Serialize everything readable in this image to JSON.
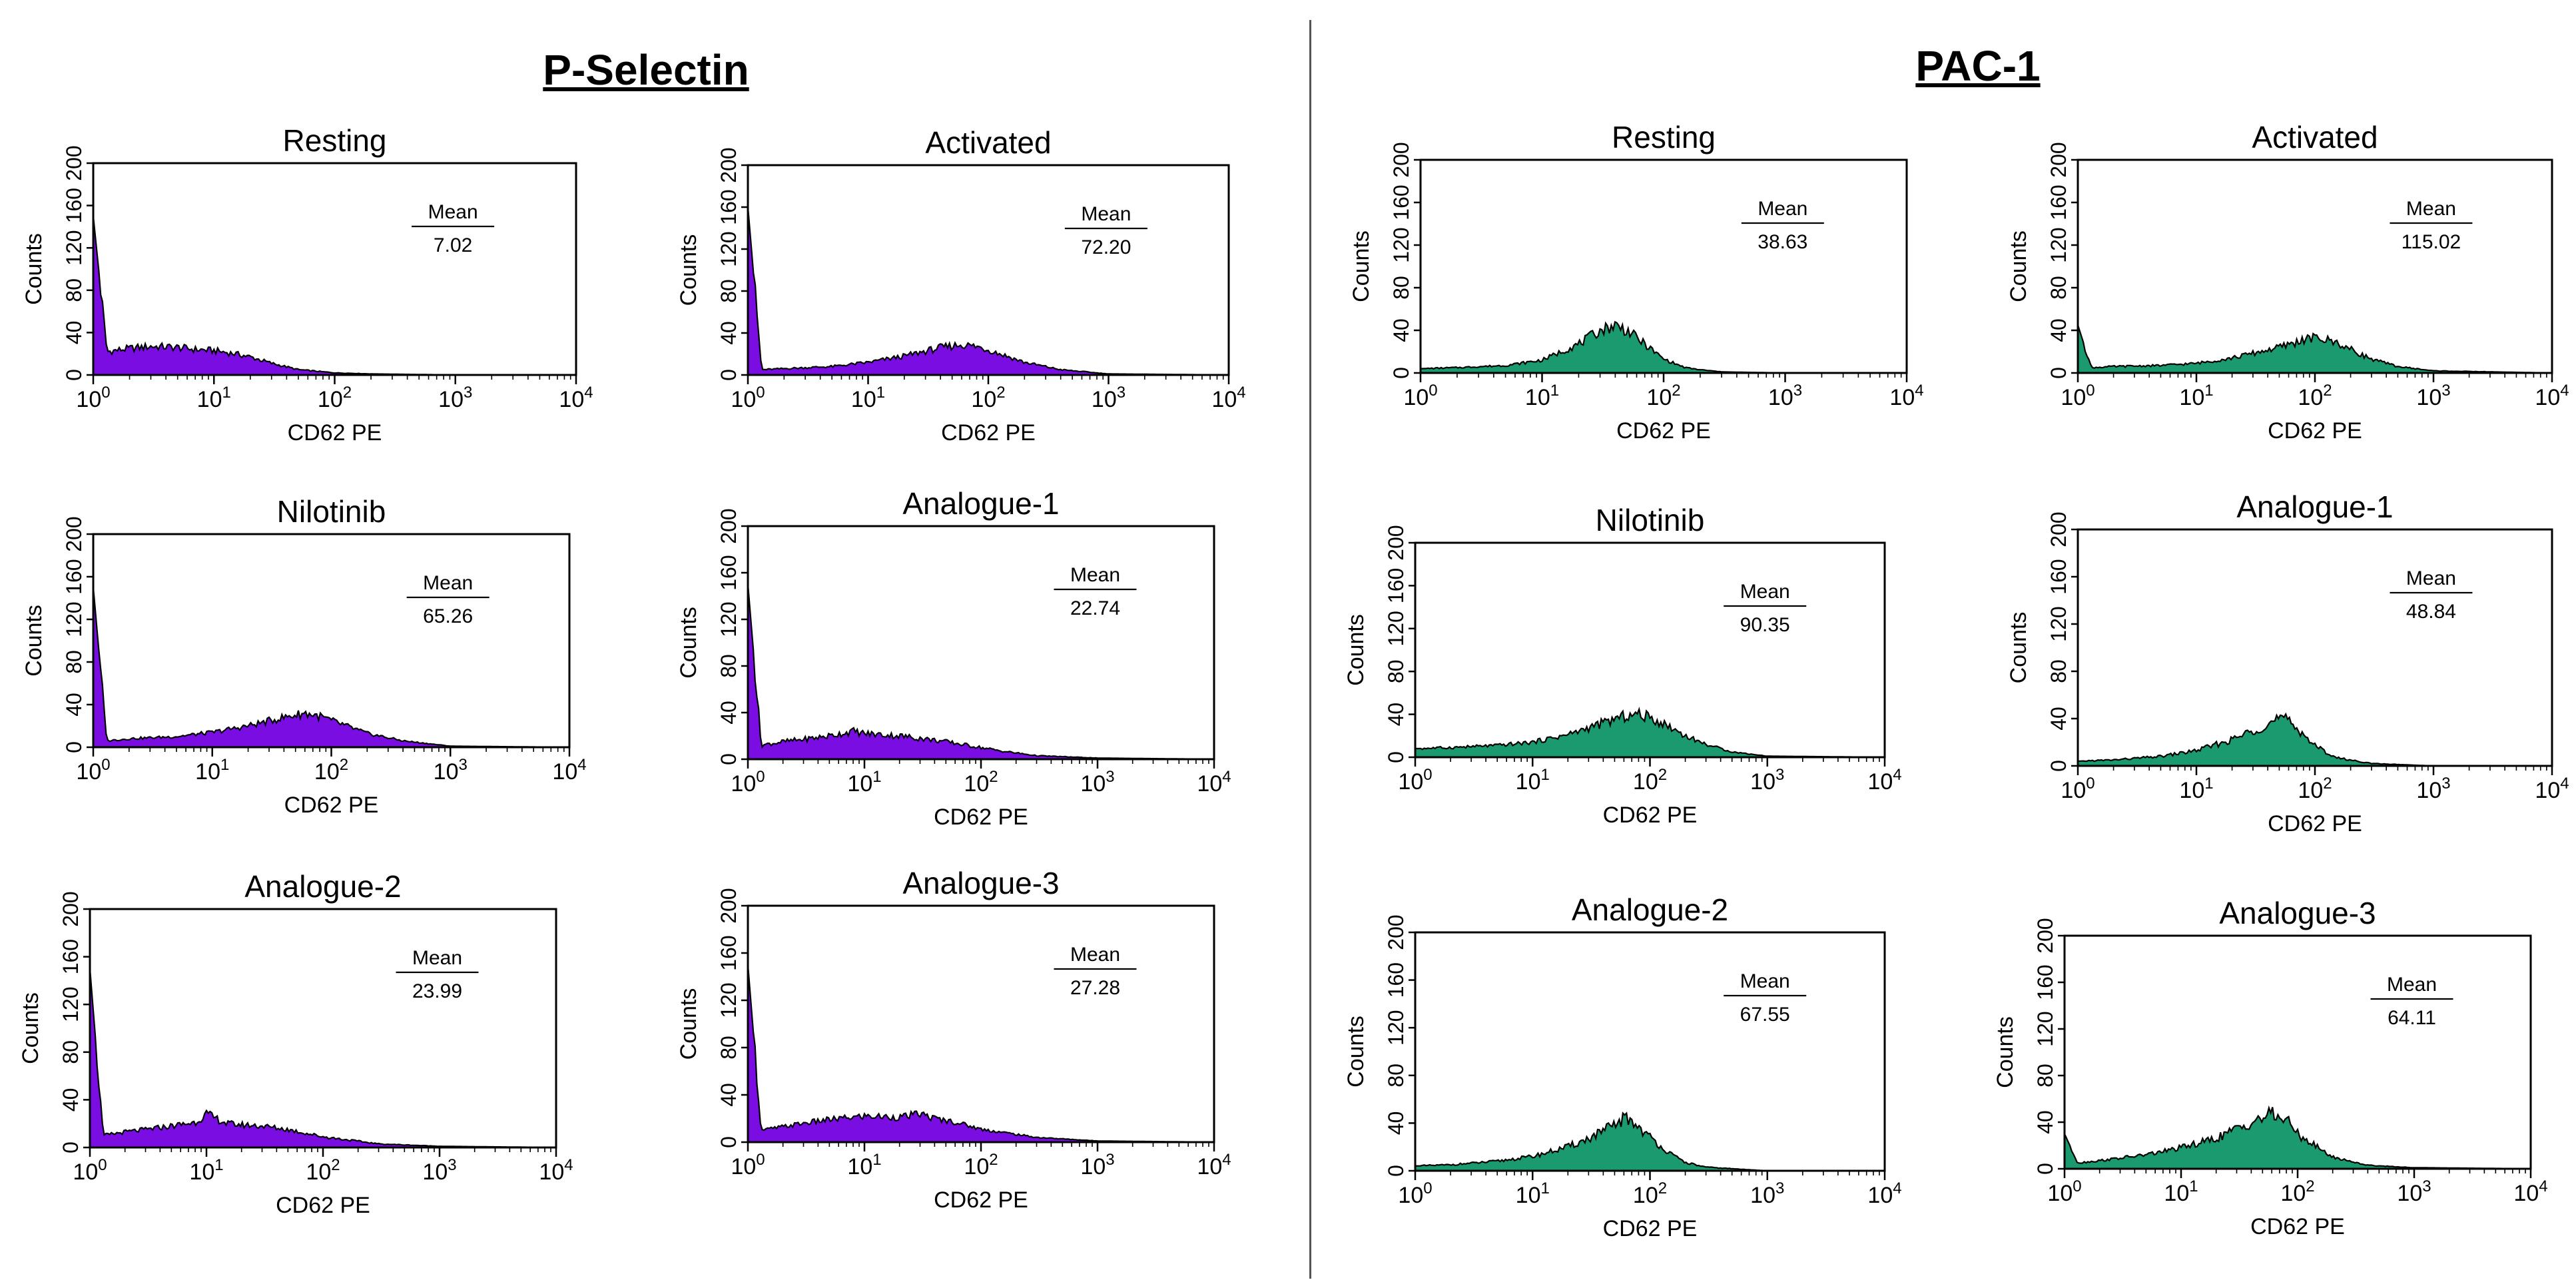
{
  "sections": {
    "left_title": "P-Selectin",
    "right_title": "PAC-1"
  },
  "colors": {
    "p_selectin_fill": "#7A0EE2",
    "pac1_fill": "#1A9A6E",
    "outline": "#000000"
  },
  "chart_data": [
    {
      "section": "P-Selectin",
      "type": "area",
      "title": "Resting",
      "xlabel": "CD62 PE",
      "ylabel": "Counts",
      "xscale": "log",
      "xlim": [
        1,
        10000
      ],
      "ylim": [
        0,
        200
      ],
      "yticks": [
        "0",
        "40",
        "80",
        "120",
        "160",
        "200"
      ],
      "stat_label": "Mean",
      "mean": "7.02",
      "histogram": {
        "x": [
          1,
          1.3,
          2,
          3,
          5,
          7,
          10,
          15,
          20,
          30,
          50,
          100,
          200,
          1000,
          10000
        ],
        "y": [
          150,
          22,
          25,
          27,
          26,
          24,
          23,
          20,
          17,
          11,
          5,
          2,
          1,
          0,
          0
        ]
      }
    },
    {
      "section": "P-Selectin",
      "type": "area",
      "title": "Activated",
      "xlabel": "CD62 PE",
      "ylabel": "Counts",
      "xscale": "log",
      "xlim": [
        1,
        10000
      ],
      "ylim": [
        0,
        200
      ],
      "yticks": [
        "0",
        "40",
        "80",
        "120",
        "160",
        "200"
      ],
      "stat_label": "Mean",
      "mean": "72.20",
      "histogram": {
        "x": [
          1,
          1.3,
          2,
          5,
          10,
          20,
          40,
          60,
          80,
          100,
          150,
          200,
          400,
          1000,
          10000
        ],
        "y": [
          160,
          5,
          6,
          8,
          12,
          18,
          26,
          29,
          27,
          24,
          17,
          12,
          5,
          1,
          0
        ]
      }
    },
    {
      "section": "P-Selectin",
      "type": "area",
      "title": "Nilotinib",
      "xlabel": "CD62 PE",
      "ylabel": "Counts",
      "xscale": "log",
      "xlim": [
        1,
        10000
      ],
      "ylim": [
        0,
        200
      ],
      "yticks": [
        "0",
        "40",
        "80",
        "120",
        "160",
        "200"
      ],
      "stat_label": "Mean",
      "mean": "65.26",
      "histogram": {
        "x": [
          1,
          1.3,
          2,
          5,
          10,
          20,
          40,
          60,
          80,
          100,
          150,
          200,
          400,
          1000,
          10000
        ],
        "y": [
          150,
          6,
          8,
          10,
          14,
          20,
          28,
          32,
          29,
          25,
          18,
          13,
          6,
          1,
          0
        ]
      }
    },
    {
      "section": "P-Selectin",
      "type": "area",
      "title": "Analogue-1",
      "xlabel": "CD62 PE",
      "ylabel": "Counts",
      "xscale": "log",
      "xlim": [
        1,
        10000
      ],
      "ylim": [
        0,
        200
      ],
      "yticks": [
        "0",
        "40",
        "80",
        "120",
        "160",
        "200"
      ],
      "stat_label": "Mean",
      "mean": "22.74",
      "histogram": {
        "x": [
          1,
          1.3,
          2,
          3,
          5,
          8,
          10,
          20,
          30,
          50,
          100,
          150,
          300,
          1000,
          10000
        ],
        "y": [
          150,
          12,
          15,
          17,
          20,
          24,
          22,
          20,
          18,
          15,
          10,
          7,
          3,
          1,
          0
        ]
      }
    },
    {
      "section": "P-Selectin",
      "type": "area",
      "title": "Analogue-2",
      "xlabel": "CD62 PE",
      "ylabel": "Counts",
      "xscale": "log",
      "xlim": [
        1,
        10000
      ],
      "ylim": [
        0,
        200
      ],
      "yticks": [
        "0",
        "40",
        "80",
        "120",
        "160",
        "200"
      ],
      "stat_label": "Mean",
      "mean": "23.99",
      "histogram": {
        "x": [
          1,
          1.3,
          2,
          3,
          5,
          8,
          10,
          15,
          20,
          30,
          50,
          100,
          300,
          1000,
          10000
        ],
        "y": [
          150,
          10,
          13,
          15,
          18,
          21,
          28,
          20,
          19,
          18,
          15,
          9,
          3,
          1,
          0
        ]
      }
    },
    {
      "section": "P-Selectin",
      "type": "area",
      "title": "Analogue-3",
      "xlabel": "CD62 PE",
      "ylabel": "Counts",
      "xscale": "log",
      "xlim": [
        1,
        10000
      ],
      "ylim": [
        0,
        200
      ],
      "yticks": [
        "0",
        "40",
        "80",
        "120",
        "160",
        "200"
      ],
      "stat_label": "Mean",
      "mean": "27.28",
      "histogram": {
        "x": [
          1,
          1.3,
          2,
          3,
          5,
          8,
          10,
          20,
          30,
          40,
          60,
          100,
          300,
          1000,
          10000
        ],
        "y": [
          150,
          10,
          13,
          16,
          19,
          21,
          22,
          21,
          24,
          20,
          17,
          11,
          4,
          1,
          0
        ]
      }
    },
    {
      "section": "PAC-1",
      "type": "area",
      "title": "Resting",
      "xlabel": "CD62 PE",
      "ylabel": "Counts",
      "xscale": "log",
      "xlim": [
        1,
        10000
      ],
      "ylim": [
        0,
        200
      ],
      "yticks": [
        "0",
        "40",
        "80",
        "120",
        "160",
        "200"
      ],
      "stat_label": "Mean",
      "mean": "38.63",
      "histogram": {
        "x": [
          1,
          2,
          5,
          10,
          20,
          30,
          40,
          50,
          70,
          100,
          150,
          200,
          300,
          1000,
          10000
        ],
        "y": [
          4,
          5,
          7,
          12,
          27,
          40,
          45,
          40,
          27,
          13,
          5,
          3,
          1,
          0,
          0
        ]
      }
    },
    {
      "section": "PAC-1",
      "type": "area",
      "title": "Activated",
      "xlabel": "CD62 PE",
      "ylabel": "Counts",
      "xscale": "log",
      "xlim": [
        1,
        10000
      ],
      "ylim": [
        0,
        200
      ],
      "yticks": [
        "0",
        "40",
        "80",
        "120",
        "160",
        "200"
      ],
      "stat_label": "Mean",
      "mean": "115.02",
      "histogram": {
        "x": [
          1,
          1.3,
          2,
          5,
          10,
          20,
          50,
          80,
          100,
          150,
          200,
          300,
          500,
          1000,
          10000
        ],
        "y": [
          45,
          5,
          6,
          7,
          9,
          14,
          24,
          31,
          33,
          29,
          22,
          13,
          6,
          2,
          0
        ]
      }
    },
    {
      "section": "PAC-1",
      "type": "area",
      "title": "Nilotinib",
      "xlabel": "CD62 PE",
      "ylabel": "Counts",
      "xscale": "log",
      "xlim": [
        1,
        10000
      ],
      "ylim": [
        0,
        200
      ],
      "yticks": [
        "0",
        "40",
        "80",
        "120",
        "160",
        "200"
      ],
      "stat_label": "Mean",
      "mean": "90.35",
      "histogram": {
        "x": [
          1,
          2,
          5,
          10,
          20,
          40,
          60,
          80,
          100,
          150,
          200,
          300,
          500,
          1000,
          10000
        ],
        "y": [
          8,
          9,
          11,
          14,
          21,
          32,
          38,
          40,
          37,
          28,
          20,
          12,
          5,
          1,
          0
        ]
      }
    },
    {
      "section": "PAC-1",
      "type": "area",
      "title": "Analogue-1",
      "xlabel": "CD62 PE",
      "ylabel": "Counts",
      "xscale": "log",
      "xlim": [
        1,
        10000
      ],
      "ylim": [
        0,
        200
      ],
      "yticks": [
        "0",
        "40",
        "80",
        "120",
        "160",
        "200"
      ],
      "stat_label": "Mean",
      "mean": "48.84",
      "histogram": {
        "x": [
          1,
          2,
          5,
          10,
          20,
          30,
          40,
          50,
          60,
          80,
          100,
          150,
          300,
          1000,
          10000
        ],
        "y": [
          4,
          5,
          8,
          13,
          22,
          30,
          35,
          40,
          38,
          27,
          17,
          7,
          2,
          0,
          0
        ]
      }
    },
    {
      "section": "PAC-1",
      "type": "area",
      "title": "Analogue-2",
      "xlabel": "CD62 PE",
      "ylabel": "Counts",
      "xscale": "log",
      "xlim": [
        1,
        10000
      ],
      "ylim": [
        0,
        200
      ],
      "yticks": [
        "0",
        "40",
        "80",
        "120",
        "160",
        "200"
      ],
      "stat_label": "Mean",
      "mean": "67.55",
      "histogram": {
        "x": [
          1,
          2,
          5,
          10,
          20,
          30,
          50,
          60,
          70,
          100,
          150,
          200,
          300,
          1000,
          10000
        ],
        "y": [
          4,
          5,
          8,
          12,
          20,
          27,
          38,
          44,
          42,
          28,
          14,
          7,
          3,
          0,
          0
        ]
      }
    },
    {
      "section": "PAC-1",
      "type": "area",
      "title": "Analogue-3",
      "xlabel": "CD62 PE",
      "ylabel": "Counts",
      "xscale": "log",
      "xlim": [
        1,
        10000
      ],
      "ylim": [
        0,
        200
      ],
      "yticks": [
        "0",
        "40",
        "80",
        "120",
        "160",
        "200"
      ],
      "stat_label": "Mean",
      "mean": "64.11",
      "histogram": {
        "x": [
          1,
          1.3,
          2,
          5,
          10,
          20,
          40,
          60,
          80,
          100,
          150,
          200,
          400,
          1000,
          10000
        ],
        "y": [
          30,
          5,
          7,
          12,
          18,
          26,
          40,
          47,
          42,
          30,
          18,
          10,
          3,
          1,
          0
        ]
      }
    }
  ]
}
